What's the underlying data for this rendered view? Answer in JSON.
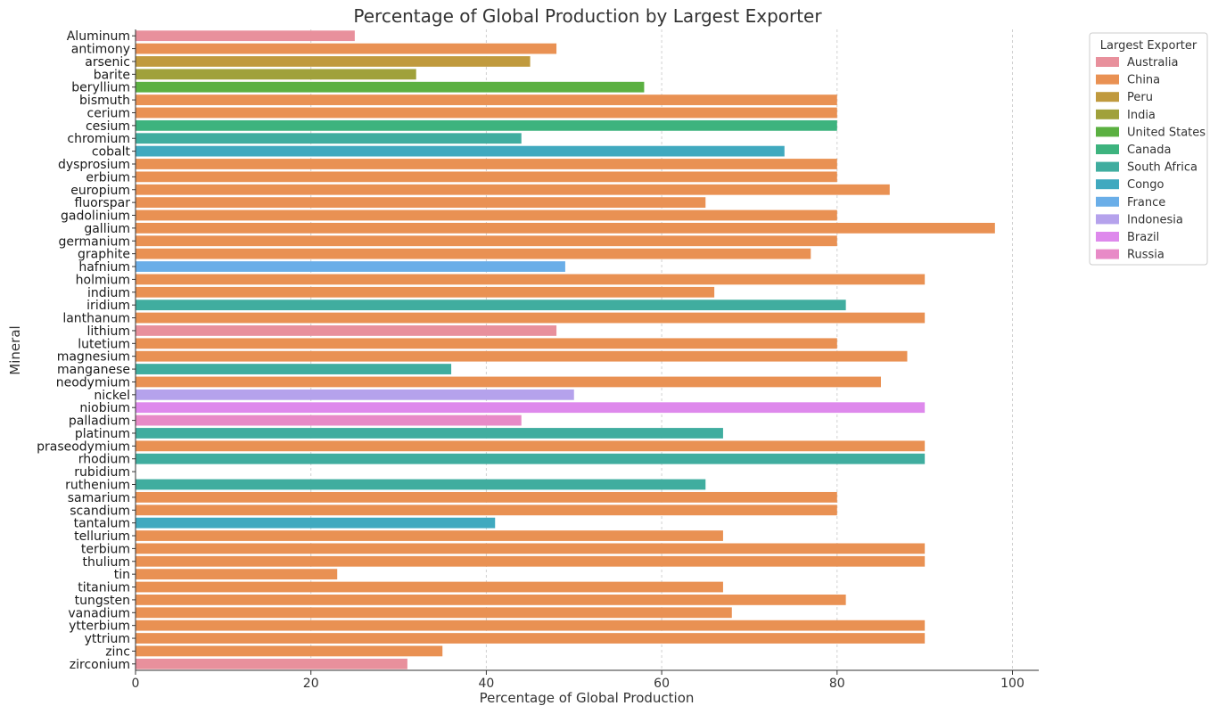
{
  "chart_data": {
    "type": "bar",
    "orientation": "horizontal",
    "title": "Percentage of Global Production by Largest Exporter",
    "xlabel": "Percentage of Global Production",
    "ylabel": "Mineral",
    "xlim": [
      0,
      103
    ],
    "xticks": [
      0,
      20,
      40,
      60,
      80,
      100
    ],
    "grid": "vertical-dashed",
    "legend": {
      "title": "Largest Exporter",
      "placement": "top-right-outside",
      "entries": [
        {
          "name": "Australia",
          "color": "#e8909c"
        },
        {
          "name": "China",
          "color": "#e99153"
        },
        {
          "name": "Peru",
          "color": "#c09a3e"
        },
        {
          "name": "India",
          "color": "#a0a13b"
        },
        {
          "name": "United States",
          "color": "#5bb041"
        },
        {
          "name": "Canada",
          "color": "#3db37e"
        },
        {
          "name": "South Africa",
          "color": "#40ad9f"
        },
        {
          "name": "Congo",
          "color": "#40a9bf"
        },
        {
          "name": "France",
          "color": "#6aaee8"
        },
        {
          "name": "Indonesia",
          "color": "#b5a2ec"
        },
        {
          "name": "Brazil",
          "color": "#de89ec"
        },
        {
          "name": "Russia",
          "color": "#e88ac7"
        }
      ]
    },
    "bars": [
      {
        "category": "Aluminum",
        "value": 25,
        "exporter": "Australia"
      },
      {
        "category": "antimony",
        "value": 48,
        "exporter": "China"
      },
      {
        "category": "arsenic",
        "value": 45,
        "exporter": "Peru"
      },
      {
        "category": "barite",
        "value": 32,
        "exporter": "India"
      },
      {
        "category": "beryllium",
        "value": 58,
        "exporter": "United States"
      },
      {
        "category": "bismuth",
        "value": 80,
        "exporter": "China"
      },
      {
        "category": "cerium",
        "value": 80,
        "exporter": "China"
      },
      {
        "category": "cesium",
        "value": 80,
        "exporter": "Canada"
      },
      {
        "category": "chromium",
        "value": 44,
        "exporter": "South Africa"
      },
      {
        "category": "cobalt",
        "value": 74,
        "exporter": "Congo"
      },
      {
        "category": "dysprosium",
        "value": 80,
        "exporter": "China"
      },
      {
        "category": "erbium",
        "value": 80,
        "exporter": "China"
      },
      {
        "category": "europium",
        "value": 86,
        "exporter": "China"
      },
      {
        "category": "fluorspar",
        "value": 65,
        "exporter": "China"
      },
      {
        "category": "gadolinium",
        "value": 80,
        "exporter": "China"
      },
      {
        "category": "gallium",
        "value": 98,
        "exporter": "China"
      },
      {
        "category": "germanium",
        "value": 80,
        "exporter": "China"
      },
      {
        "category": "graphite",
        "value": 77,
        "exporter": "China"
      },
      {
        "category": "hafnium",
        "value": 49,
        "exporter": "France"
      },
      {
        "category": "holmium",
        "value": 90,
        "exporter": "China"
      },
      {
        "category": "indium",
        "value": 66,
        "exporter": "China"
      },
      {
        "category": "iridium",
        "value": 81,
        "exporter": "South Africa"
      },
      {
        "category": "lanthanum",
        "value": 90,
        "exporter": "China"
      },
      {
        "category": "lithium",
        "value": 48,
        "exporter": "Australia"
      },
      {
        "category": "lutetium",
        "value": 80,
        "exporter": "China"
      },
      {
        "category": "magnesium",
        "value": 88,
        "exporter": "China"
      },
      {
        "category": "manganese",
        "value": 36,
        "exporter": "South Africa"
      },
      {
        "category": "neodymium",
        "value": 85,
        "exporter": "China"
      },
      {
        "category": "nickel",
        "value": 50,
        "exporter": "Indonesia"
      },
      {
        "category": "niobium",
        "value": 90,
        "exporter": "Brazil"
      },
      {
        "category": "palladium",
        "value": 44,
        "exporter": "Russia"
      },
      {
        "category": "platinum",
        "value": 67,
        "exporter": "South Africa"
      },
      {
        "category": "praseodymium",
        "value": 90,
        "exporter": "China"
      },
      {
        "category": "rhodium",
        "value": 90,
        "exporter": "South Africa"
      },
      {
        "category": "rubidium",
        "value": 0,
        "exporter": ""
      },
      {
        "category": "ruthenium",
        "value": 65,
        "exporter": "South Africa"
      },
      {
        "category": "samarium",
        "value": 80,
        "exporter": "China"
      },
      {
        "category": "scandium",
        "value": 80,
        "exporter": "China"
      },
      {
        "category": "tantalum",
        "value": 41,
        "exporter": "Congo"
      },
      {
        "category": "tellurium",
        "value": 67,
        "exporter": "China"
      },
      {
        "category": "terbium",
        "value": 90,
        "exporter": "China"
      },
      {
        "category": "thulium",
        "value": 90,
        "exporter": "China"
      },
      {
        "category": "tin",
        "value": 23,
        "exporter": "China"
      },
      {
        "category": "titanium",
        "value": 67,
        "exporter": "China"
      },
      {
        "category": "tungsten",
        "value": 81,
        "exporter": "China"
      },
      {
        "category": "vanadium",
        "value": 68,
        "exporter": "China"
      },
      {
        "category": "ytterbium",
        "value": 90,
        "exporter": "China"
      },
      {
        "category": "yttrium",
        "value": 90,
        "exporter": "China"
      },
      {
        "category": "zinc",
        "value": 35,
        "exporter": "China"
      },
      {
        "category": "zirconium",
        "value": 31,
        "exporter": "Australia"
      }
    ]
  }
}
